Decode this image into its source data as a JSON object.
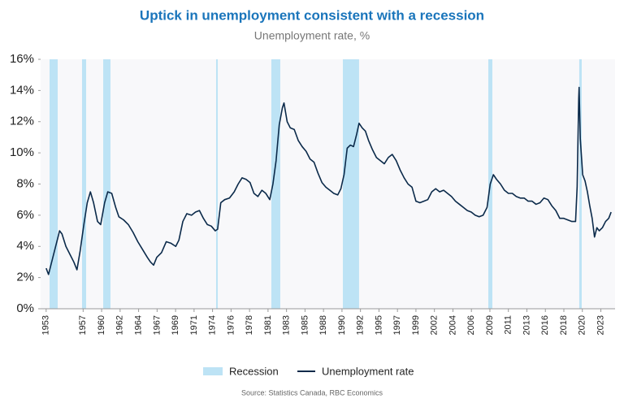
{
  "chart_data": {
    "type": "line",
    "title": "Uptick in unemployment consistent with a recession",
    "subtitle": "Unemployment rate, %",
    "source": "Source: Statistics Canada, RBC Economics",
    "xlim": [
      1952.3,
      2025.0
    ],
    "ylim": [
      0,
      16
    ],
    "yticks": [
      {
        "value": 0,
        "label": "0%"
      },
      {
        "value": 2,
        "label": "2%"
      },
      {
        "value": 4,
        "label": "4%"
      },
      {
        "value": 6,
        "label": "6%"
      },
      {
        "value": 8,
        "label": "8%"
      },
      {
        "value": 10,
        "label": "10%"
      },
      {
        "value": 12,
        "label": "12%"
      },
      {
        "value": 14,
        "label": "14%"
      },
      {
        "value": 16,
        "label": "16%"
      }
    ],
    "xticks": [
      {
        "value": 1953.0,
        "label": "1953"
      },
      {
        "value": 1957.68,
        "label": "1957"
      },
      {
        "value": 1960.02,
        "label": "1960"
      },
      {
        "value": 1962.36,
        "label": "1962"
      },
      {
        "value": 1964.7,
        "label": "1964"
      },
      {
        "value": 1967.04,
        "label": "1967"
      },
      {
        "value": 1969.38,
        "label": "1969"
      },
      {
        "value": 1971.72,
        "label": "1971"
      },
      {
        "value": 1974.06,
        "label": "1974"
      },
      {
        "value": 1976.4,
        "label": "1976"
      },
      {
        "value": 1978.74,
        "label": "1978"
      },
      {
        "value": 1981.08,
        "label": "1981"
      },
      {
        "value": 1983.42,
        "label": "1983"
      },
      {
        "value": 1985.76,
        "label": "1985"
      },
      {
        "value": 1988.1,
        "label": "1988"
      },
      {
        "value": 1990.44,
        "label": "1990"
      },
      {
        "value": 1992.78,
        "label": "1992"
      },
      {
        "value": 1995.12,
        "label": "1995"
      },
      {
        "value": 1997.46,
        "label": "1997"
      },
      {
        "value": 1999.8,
        "label": "1999"
      },
      {
        "value": 2002.14,
        "label": "2002"
      },
      {
        "value": 2004.48,
        "label": "2004"
      },
      {
        "value": 2006.82,
        "label": "2006"
      },
      {
        "value": 2009.16,
        "label": "2009"
      },
      {
        "value": 2011.5,
        "label": "2011"
      },
      {
        "value": 2013.84,
        "label": "2013"
      },
      {
        "value": 2016.18,
        "label": "2016"
      },
      {
        "value": 2018.52,
        "label": "2018"
      },
      {
        "value": 2020.86,
        "label": "2020"
      },
      {
        "value": 2023.2,
        "label": "2023"
      }
    ],
    "recessions": {
      "name": "Recession",
      "color": "#bde3f5",
      "periods": [
        [
          1953.43,
          1954.46
        ],
        [
          1957.54,
          1958.06
        ],
        [
          1960.22,
          1961.14
        ],
        [
          1974.51,
          1974.72
        ],
        [
          1981.5,
          1982.63
        ],
        [
          1990.55,
          1992.6
        ],
        [
          2008.96,
          2009.47
        ],
        [
          2020.47,
          2020.78
        ]
      ]
    },
    "x": [
      1953.0,
      1953.3,
      1953.8,
      1954.3,
      1954.7,
      1955.0,
      1955.5,
      1956.0,
      1956.5,
      1956.9,
      1957.3,
      1957.8,
      1958.2,
      1958.6,
      1959.0,
      1959.5,
      1959.9,
      1960.4,
      1960.8,
      1961.3,
      1961.8,
      1962.2,
      1962.8,
      1963.4,
      1964.0,
      1964.6,
      1965.2,
      1965.8,
      1966.2,
      1966.6,
      1967.0,
      1967.6,
      1968.2,
      1968.8,
      1969.4,
      1969.8,
      1970.3,
      1970.8,
      1971.4,
      1971.9,
      1972.4,
      1972.9,
      1973.4,
      1973.9,
      1974.4,
      1974.7,
      1975.1,
      1975.6,
      1976.2,
      1976.8,
      1977.3,
      1977.8,
      1978.3,
      1978.8,
      1979.3,
      1979.8,
      1980.3,
      1980.8,
      1981.3,
      1981.7,
      1982.1,
      1982.5,
      1982.9,
      1983.1,
      1983.5,
      1983.9,
      1984.4,
      1984.9,
      1985.4,
      1985.9,
      1986.4,
      1986.9,
      1987.4,
      1987.9,
      1988.4,
      1988.9,
      1989.4,
      1989.9,
      1990.3,
      1990.7,
      1991.1,
      1991.5,
      1991.9,
      1992.3,
      1992.6,
      1993.0,
      1993.4,
      1993.8,
      1994.3,
      1994.8,
      1995.3,
      1995.8,
      1996.3,
      1996.8,
      1997.3,
      1997.8,
      1998.3,
      1998.8,
      1999.3,
      1999.8,
      2000.3,
      2000.8,
      2001.3,
      2001.8,
      2002.3,
      2002.8,
      2003.3,
      2003.8,
      2004.3,
      2004.8,
      2005.3,
      2005.8,
      2006.3,
      2006.8,
      2007.3,
      2007.8,
      2008.3,
      2008.8,
      2009.2,
      2009.6,
      2010.0,
      2010.5,
      2011.0,
      2011.5,
      2012.0,
      2012.5,
      2013.0,
      2013.5,
      2014.0,
      2014.5,
      2015.0,
      2015.5,
      2016.0,
      2016.5,
      2017.0,
      2017.5,
      2018.0,
      2018.5,
      2019.0,
      2019.5,
      2020.0,
      2020.2,
      2020.4,
      2020.45,
      2020.6,
      2020.9,
      2021.2,
      2021.5,
      2021.8,
      2022.1,
      2022.4,
      2022.7,
      2023.0,
      2023.4,
      2023.8,
      2024.2,
      2024.5
    ],
    "series": [
      {
        "name": "Unemployment rate",
        "color": "#0b2a4a",
        "values": [
          2.6,
          2.2,
          3.2,
          4.2,
          5.0,
          4.8,
          4.0,
          3.5,
          3.0,
          2.5,
          3.7,
          5.5,
          6.8,
          7.5,
          6.8,
          5.6,
          5.4,
          6.8,
          7.5,
          7.4,
          6.5,
          5.9,
          5.7,
          5.4,
          4.9,
          4.3,
          3.8,
          3.3,
          3.0,
          2.8,
          3.3,
          3.6,
          4.3,
          4.2,
          4.0,
          4.4,
          5.6,
          6.1,
          6.0,
          6.2,
          6.3,
          5.8,
          5.4,
          5.3,
          5.0,
          5.1,
          6.8,
          7.0,
          7.1,
          7.5,
          8.0,
          8.4,
          8.3,
          8.1,
          7.4,
          7.2,
          7.6,
          7.4,
          7.0,
          8.0,
          9.5,
          11.8,
          12.9,
          13.2,
          12.0,
          11.6,
          11.5,
          10.8,
          10.4,
          10.1,
          9.6,
          9.4,
          8.7,
          8.1,
          7.8,
          7.6,
          7.4,
          7.3,
          7.7,
          8.6,
          10.3,
          10.5,
          10.4,
          11.2,
          11.9,
          11.6,
          11.4,
          10.8,
          10.2,
          9.7,
          9.5,
          9.3,
          9.7,
          9.9,
          9.5,
          8.9,
          8.4,
          8.0,
          7.8,
          6.9,
          6.8,
          6.9,
          7.0,
          7.5,
          7.7,
          7.5,
          7.6,
          7.4,
          7.2,
          6.9,
          6.7,
          6.5,
          6.3,
          6.2,
          6.0,
          5.9,
          6.0,
          6.5,
          8.0,
          8.6,
          8.3,
          8.0,
          7.6,
          7.4,
          7.4,
          7.2,
          7.1,
          7.1,
          6.9,
          6.9,
          6.7,
          6.8,
          7.1,
          7.0,
          6.6,
          6.3,
          5.8,
          5.8,
          5.7,
          5.6,
          5.6,
          7.8,
          13.5,
          14.2,
          10.9,
          8.6,
          8.2,
          7.5,
          6.6,
          5.8,
          4.6,
          5.2,
          5.0,
          5.2,
          5.6,
          5.8,
          6.2
        ]
      }
    ]
  }
}
